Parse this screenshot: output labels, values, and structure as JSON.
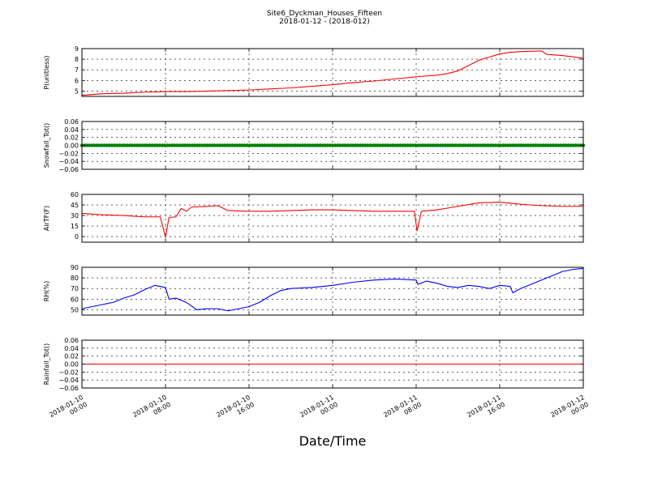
{
  "chart_data": {
    "title": [
      "Site6_Dyckman_Houses_Fifteen",
      "2018-01-12 - (2018-012)"
    ],
    "xlabel": "Date/Time",
    "x_range": [
      "2018-01-10 00:00",
      "2018-01-12 00:00"
    ],
    "x_ticks": [
      {
        "value": "2018-01-10 00:00",
        "lines": [
          "2018-01-10",
          "00:00"
        ]
      },
      {
        "value": "2018-01-10 08:00",
        "lines": [
          "2018-01-10",
          "08:00"
        ]
      },
      {
        "value": "2018-01-10 16:00",
        "lines": [
          "2018-01-10",
          "16:00"
        ]
      },
      {
        "value": "2018-01-11 00:00",
        "lines": [
          "2018-01-11",
          "00:00"
        ]
      },
      {
        "value": "2018-01-11 08:00",
        "lines": [
          "2018-01-11",
          "08:00"
        ]
      },
      {
        "value": "2018-01-11 16:00",
        "lines": [
          "2018-01-11",
          "16:00"
        ]
      },
      {
        "value": "2018-01-12 00:00",
        "lines": [
          "2018-01-12",
          "00:00"
        ]
      }
    ],
    "grid": true,
    "panels": [
      {
        "ylabel": "P(unitless)",
        "type": "line",
        "color": "#ff0000",
        "ylim": [
          4.5,
          9
        ],
        "yticks": [
          5,
          6,
          7,
          8,
          9
        ],
        "ytick_labels": [
          "5",
          "6",
          "7",
          "8",
          "9"
        ],
        "points": [
          [
            "2018-01-10 00:00",
            4.6
          ],
          [
            "2018-01-10 02:00",
            4.75
          ],
          [
            "2018-01-10 04:00",
            4.8
          ],
          [
            "2018-01-10 06:00",
            4.9
          ],
          [
            "2018-01-10 08:00",
            4.95
          ],
          [
            "2018-01-10 10:00",
            4.95
          ],
          [
            "2018-01-10 12:00",
            5.0
          ],
          [
            "2018-01-10 14:00",
            5.05
          ],
          [
            "2018-01-10 16:00",
            5.1
          ],
          [
            "2018-01-10 18:00",
            5.2
          ],
          [
            "2018-01-10 20:00",
            5.3
          ],
          [
            "2018-01-10 22:00",
            5.45
          ],
          [
            "2018-01-11 00:00",
            5.6
          ],
          [
            "2018-01-11 02:00",
            5.8
          ],
          [
            "2018-01-11 04:00",
            5.95
          ],
          [
            "2018-01-11 06:00",
            6.15
          ],
          [
            "2018-01-11 08:00",
            6.35
          ],
          [
            "2018-01-11 10:00",
            6.5
          ],
          [
            "2018-01-11 11:00",
            6.65
          ],
          [
            "2018-01-11 12:00",
            6.9
          ],
          [
            "2018-01-11 13:00",
            7.4
          ],
          [
            "2018-01-11 14:00",
            7.9
          ],
          [
            "2018-01-11 15:00",
            8.2
          ],
          [
            "2018-01-11 16:00",
            8.5
          ],
          [
            "2018-01-11 17:00",
            8.65
          ],
          [
            "2018-01-11 18:00",
            8.72
          ],
          [
            "2018-01-11 19:00",
            8.75
          ],
          [
            "2018-01-11 20:00",
            8.78
          ],
          [
            "2018-01-11 20:30",
            8.45
          ],
          [
            "2018-01-11 22:00",
            8.35
          ],
          [
            "2018-01-12 00:00",
            8.1
          ]
        ]
      },
      {
        "ylabel": "Snowfall_Tot()",
        "type": "markers",
        "color": "#008000",
        "ylim": [
          -0.06,
          0.06
        ],
        "yticks": [
          -0.06,
          -0.04,
          -0.02,
          0.0,
          0.02,
          0.04,
          0.06
        ],
        "ytick_labels": [
          "−0.06",
          "−0.04",
          "−0.02",
          "0.00",
          "0.02",
          "0.04",
          "0.06"
        ],
        "constant_value": 0,
        "points": []
      },
      {
        "ylabel": "AirTF(F)",
        "type": "line",
        "color": "#ff0000",
        "ylim": [
          -8,
          60
        ],
        "yticks": [
          0,
          15,
          30,
          45,
          60
        ],
        "ytick_labels": [
          "0",
          "15",
          "30",
          "45",
          "60"
        ],
        "points": [
          [
            "2018-01-10 00:00",
            33
          ],
          [
            "2018-01-10 02:00",
            31
          ],
          [
            "2018-01-10 04:00",
            30
          ],
          [
            "2018-01-10 05:00",
            29
          ],
          [
            "2018-01-10 06:00",
            28
          ],
          [
            "2018-01-10 07:30",
            28
          ],
          [
            "2018-01-10 08:00",
            -1
          ],
          [
            "2018-01-10 08:20",
            27
          ],
          [
            "2018-01-10 09:00",
            28
          ],
          [
            "2018-01-10 09:30",
            40
          ],
          [
            "2018-01-10 10:00",
            36
          ],
          [
            "2018-01-10 10:30",
            42
          ],
          [
            "2018-01-10 12:00",
            43
          ],
          [
            "2018-01-10 13:00",
            44
          ],
          [
            "2018-01-10 14:00",
            37
          ],
          [
            "2018-01-10 16:00",
            36
          ],
          [
            "2018-01-10 18:00",
            36
          ],
          [
            "2018-01-10 20:00",
            37
          ],
          [
            "2018-01-10 22:00",
            38
          ],
          [
            "2018-01-11 00:00",
            38
          ],
          [
            "2018-01-11 02:00",
            37
          ],
          [
            "2018-01-11 04:00",
            36
          ],
          [
            "2018-01-11 06:00",
            36
          ],
          [
            "2018-01-11 07:50",
            36
          ],
          [
            "2018-01-11 08:05",
            8
          ],
          [
            "2018-01-11 08:30",
            36
          ],
          [
            "2018-01-11 10:00",
            38
          ],
          [
            "2018-01-11 12:00",
            43
          ],
          [
            "2018-01-11 14:00",
            48
          ],
          [
            "2018-01-11 16:00",
            49
          ],
          [
            "2018-01-11 18:00",
            46
          ],
          [
            "2018-01-11 20:00",
            44
          ],
          [
            "2018-01-11 22:00",
            43
          ],
          [
            "2018-01-12 00:00",
            43
          ]
        ]
      },
      {
        "ylabel": "RH(%)",
        "type": "line",
        "color": "#0000ff",
        "ylim": [
          45,
          90
        ],
        "yticks": [
          50,
          60,
          70,
          80,
          90
        ],
        "ytick_labels": [
          "50",
          "60",
          "70",
          "80",
          "90"
        ],
        "points": [
          [
            "2018-01-10 00:00",
            51
          ],
          [
            "2018-01-10 01:00",
            53
          ],
          [
            "2018-01-10 02:00",
            55
          ],
          [
            "2018-01-10 03:00",
            57
          ],
          [
            "2018-01-10 04:00",
            61
          ],
          [
            "2018-01-10 05:00",
            64
          ],
          [
            "2018-01-10 06:00",
            69
          ],
          [
            "2018-01-10 07:00",
            73
          ],
          [
            "2018-01-10 08:00",
            71
          ],
          [
            "2018-01-10 08:20",
            60
          ],
          [
            "2018-01-10 09:00",
            61
          ],
          [
            "2018-01-10 10:00",
            57
          ],
          [
            "2018-01-10 11:00",
            50
          ],
          [
            "2018-01-10 12:00",
            51
          ],
          [
            "2018-01-10 13:00",
            51
          ],
          [
            "2018-01-10 14:00",
            49
          ],
          [
            "2018-01-10 15:00",
            51
          ],
          [
            "2018-01-10 16:00",
            53
          ],
          [
            "2018-01-10 17:00",
            57
          ],
          [
            "2018-01-10 18:00",
            63
          ],
          [
            "2018-01-10 19:00",
            68
          ],
          [
            "2018-01-10 20:00",
            70
          ],
          [
            "2018-01-10 22:00",
            71
          ],
          [
            "2018-01-11 00:00",
            73
          ],
          [
            "2018-01-11 02:00",
            76
          ],
          [
            "2018-01-11 04:00",
            78
          ],
          [
            "2018-01-11 06:00",
            79
          ],
          [
            "2018-01-11 08:00",
            78
          ],
          [
            "2018-01-11 08:10",
            74
          ],
          [
            "2018-01-11 09:00",
            77
          ],
          [
            "2018-01-11 10:00",
            75
          ],
          [
            "2018-01-11 11:00",
            72
          ],
          [
            "2018-01-11 12:00",
            71
          ],
          [
            "2018-01-11 13:00",
            73
          ],
          [
            "2018-01-11 14:00",
            72
          ],
          [
            "2018-01-11 15:00",
            70
          ],
          [
            "2018-01-11 16:00",
            73
          ],
          [
            "2018-01-11 17:00",
            72
          ],
          [
            "2018-01-11 17:15",
            66
          ],
          [
            "2018-01-11 18:00",
            70
          ],
          [
            "2018-01-11 19:00",
            74
          ],
          [
            "2018-01-11 20:00",
            78
          ],
          [
            "2018-01-11 21:00",
            82
          ],
          [
            "2018-01-11 22:00",
            86
          ],
          [
            "2018-01-11 23:00",
            88
          ],
          [
            "2018-01-12 00:00",
            89
          ]
        ]
      },
      {
        "ylabel": "Rainfall_Tot()",
        "type": "line",
        "color": "#ff0000",
        "ylim": [
          -0.06,
          0.06
        ],
        "yticks": [
          -0.06,
          -0.04,
          -0.02,
          0.0,
          0.02,
          0.04,
          0.06
        ],
        "ytick_labels": [
          "−0.06",
          "−0.04",
          "−0.02",
          "0.00",
          "0.02",
          "0.04",
          "0.06"
        ],
        "points": [
          [
            "2018-01-10 00:00",
            0
          ],
          [
            "2018-01-12 00:00",
            0
          ]
        ]
      }
    ]
  }
}
